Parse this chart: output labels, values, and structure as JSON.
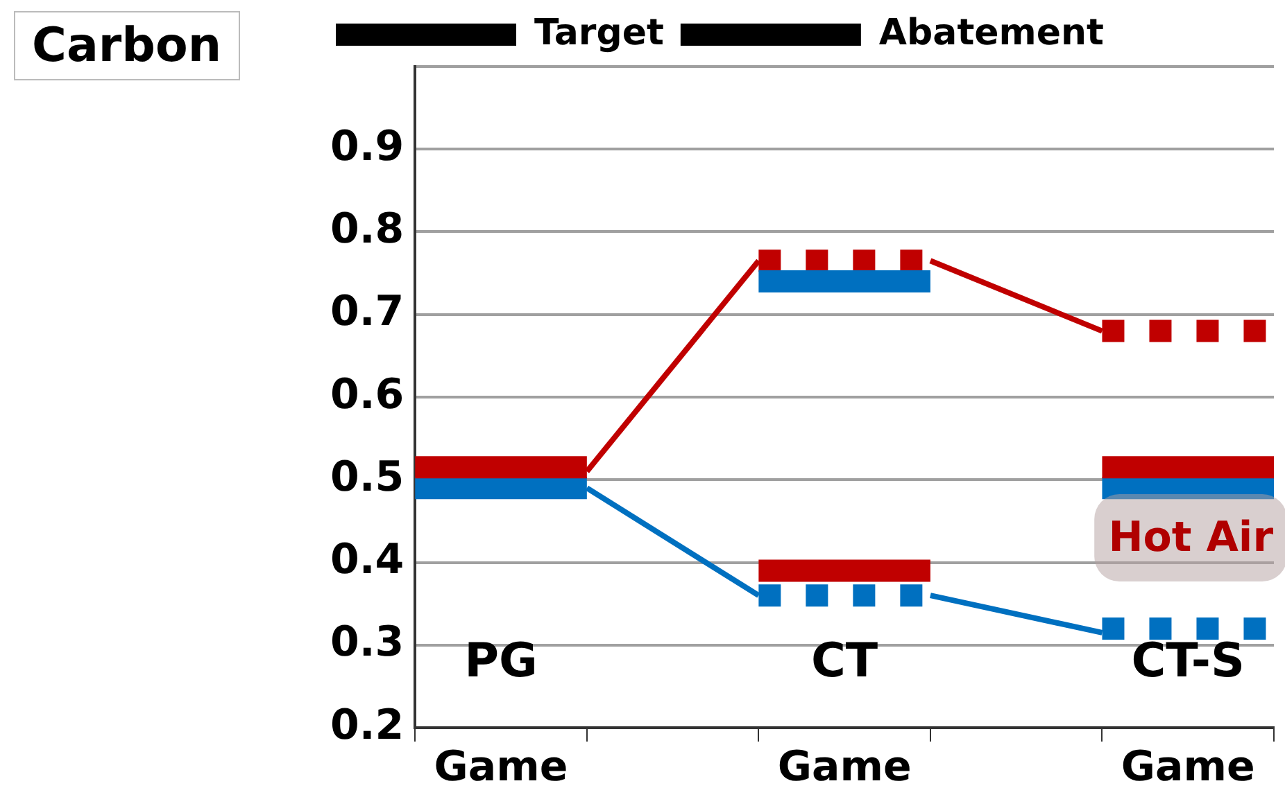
{
  "chart_data": {
    "type": "line",
    "ylabel": "Carbon",
    "categories": [
      null,
      "Game",
      null,
      null,
      null,
      "Game",
      null,
      null,
      null,
      "Game",
      null
    ],
    "ylim": [
      0.2,
      1.0
    ],
    "yticks": [
      0.2,
      0.3,
      0.4,
      0.5,
      0.6,
      0.7,
      0.8,
      0.9,
      {
        "value": 1.0,
        "label": null
      }
    ],
    "grid": "y",
    "legend": "top left",
    "series": [
      {
        "name": "Target",
        "type": "step",
        "color": "#000000",
        "line_style": "dashed",
        "values": [
          null,
          null,
          null,
          null,
          null,
          null,
          null,
          null,
          null,
          null,
          null
        ]
      },
      {
        "name": "Abatement",
        "type": "step",
        "color": "#000000",
        "line_style": "solid",
        "values": [
          null,
          null,
          null,
          null,
          null,
          null,
          null,
          null,
          null,
          null,
          null
        ]
      },
      {
        "color": "#c00000",
        "values": [
          null,
          null,
          0.51,
          null,
          0.765,
          null,
          null,
          null,
          null,
          null,
          null
        ]
      },
      {
        "color": "#c00000",
        "values": [
          null,
          null,
          null,
          null,
          null,
          null,
          0.765,
          null,
          0.68,
          null,
          null
        ]
      },
      {
        "color": "#0070c0",
        "values": [
          null,
          null,
          0.49,
          null,
          0.36,
          null,
          null,
          null,
          null,
          null,
          null
        ]
      },
      {
        "color": "#0070c0",
        "values": [
          null,
          null,
          null,
          null,
          null,
          null,
          0.36,
          null,
          0.315,
          null,
          null
        ]
      },
      {
        "type": "step",
        "color": "#c00000",
        "line_style": "solid",
        "values": [
          0.515,
          0.515,
          0.515,
          null,
          0.39,
          0.39,
          0.39,
          null,
          0.515,
          0.515,
          0.515
        ]
      },
      {
        "type": "step",
        "color": "#0070c0",
        "line_style": "solid",
        "values": [
          0.49,
          0.49,
          0.49,
          null,
          0.74,
          0.74,
          0.74,
          null,
          0.49,
          0.49,
          0.49
        ]
      },
      {
        "type": "step",
        "color": "#c00000",
        "line_style": "dashed",
        "values": [
          null,
          null,
          null,
          null,
          0.765,
          0.765,
          0.765,
          null,
          0.68,
          0.68,
          0.68
        ]
      },
      {
        "type": "step",
        "color": "#0070c0",
        "line_style": "dashed",
        "values": [
          null,
          null,
          null,
          null,
          0.36,
          0.36,
          0.36,
          null,
          0.32,
          0.32,
          0.32
        ]
      }
    ],
    "annotations": [
      "PG",
      "CT",
      "CT-S",
      "Hot Air"
    ]
  }
}
